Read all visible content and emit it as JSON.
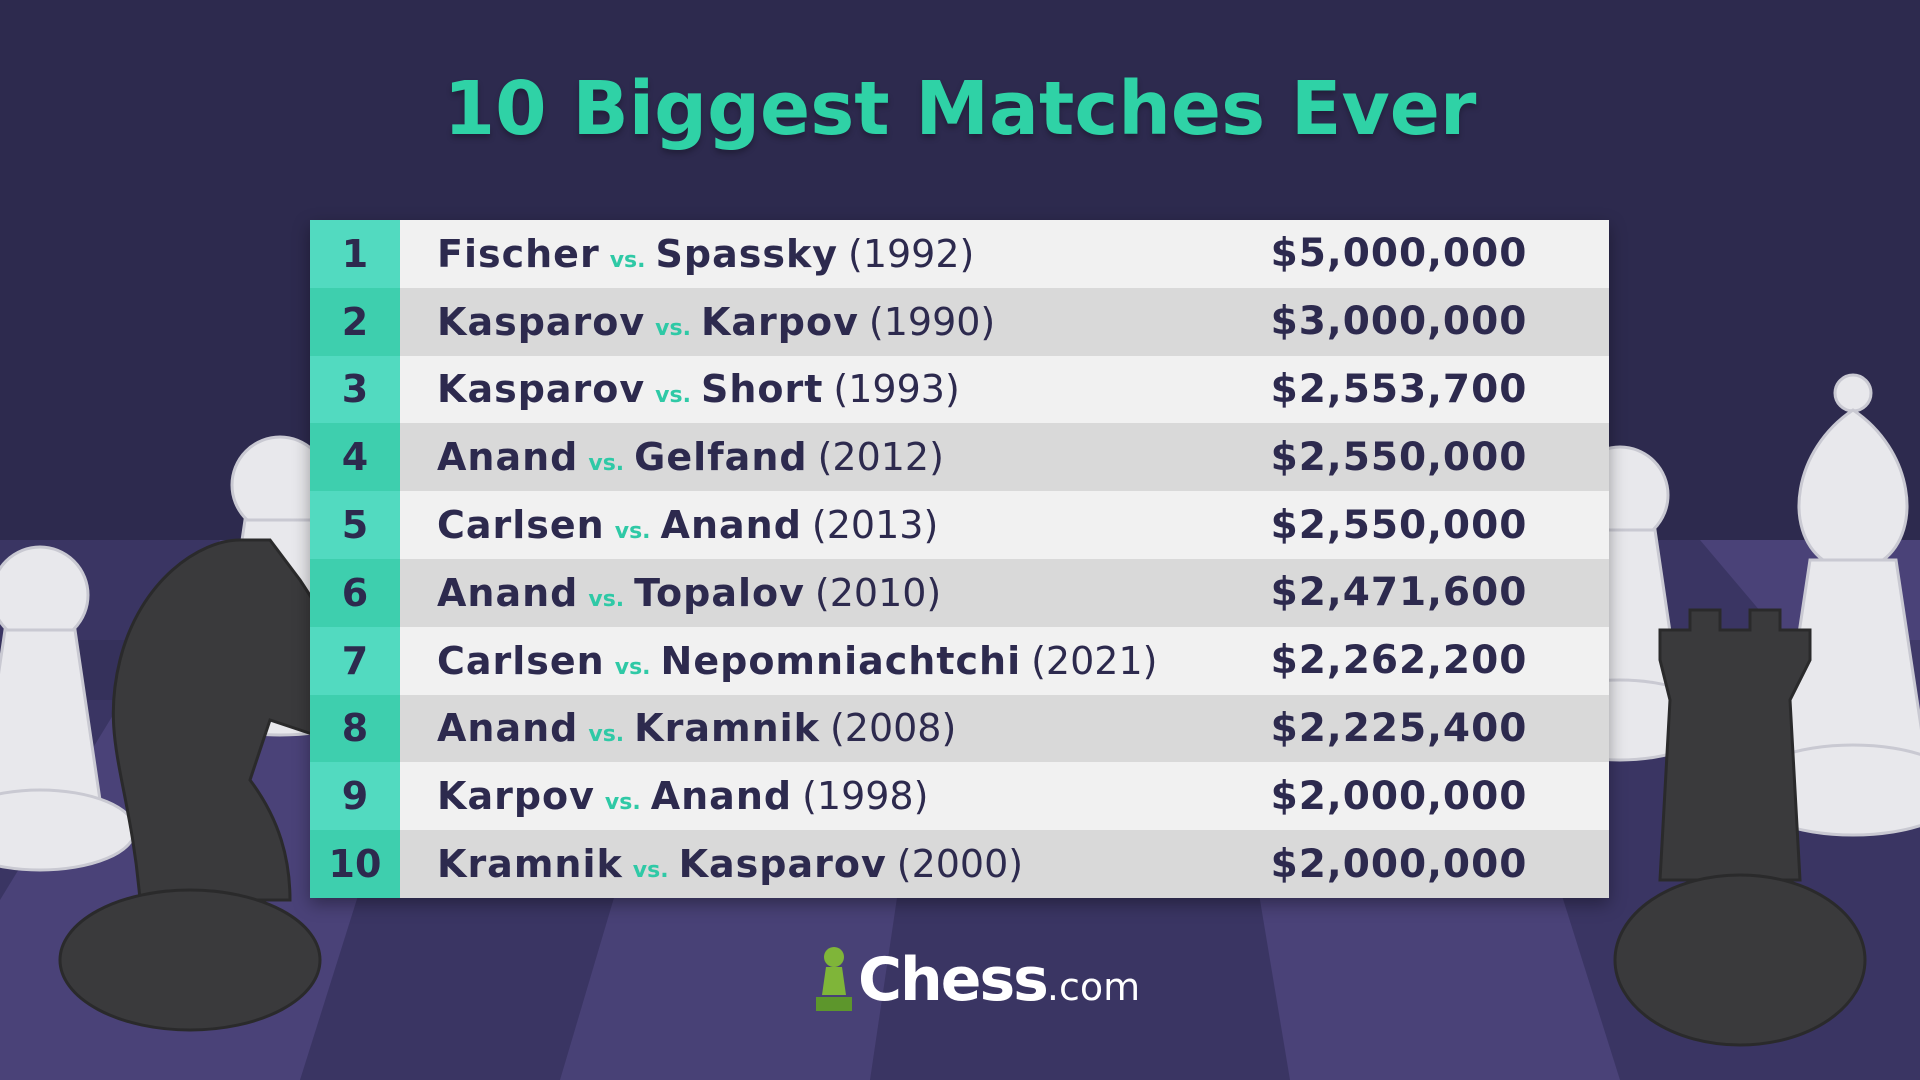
{
  "title": "10 Biggest Matches Ever",
  "table": {
    "rows": [
      {
        "rank": "1",
        "player1": "Fischer",
        "vs": "vs.",
        "player2": "Spassky",
        "year": "(1992)",
        "prize": "$5,000,000"
      },
      {
        "rank": "2",
        "player1": "Kasparov",
        "vs": "vs.",
        "player2": "Karpov",
        "year": "(1990)",
        "prize": "$3,000,000"
      },
      {
        "rank": "3",
        "player1": "Kasparov",
        "vs": "vs.",
        "player2": "Short",
        "year": "(1993)",
        "prize": "$2,553,700"
      },
      {
        "rank": "4",
        "player1": "Anand",
        "vs": "vs.",
        "player2": "Gelfand",
        "year": "(2012)",
        "prize": "$2,550,000"
      },
      {
        "rank": "5",
        "player1": "Carlsen",
        "vs": "vs.",
        "player2": "Anand",
        "year": "(2013)",
        "prize": "$2,550,000"
      },
      {
        "rank": "6",
        "player1": "Anand",
        "vs": "vs.",
        "player2": "Topalov",
        "year": "(2010)",
        "prize": "$2,471,600"
      },
      {
        "rank": "7",
        "player1": "Carlsen",
        "vs": "vs.",
        "player2": "Nepomniachtchi",
        "year": "(2021)",
        "prize": "$2,262,200"
      },
      {
        "rank": "8",
        "player1": "Anand",
        "vs": "vs.",
        "player2": "Kramnik",
        "year": "(2008)",
        "prize": "$2,225,400"
      },
      {
        "rank": "9",
        "player1": "Karpov",
        "vs": "vs.",
        "player2": "Anand",
        "year": "(1998)",
        "prize": "$2,000,000"
      },
      {
        "rank": "10",
        "player1": "Kramnik",
        "vs": "vs.",
        "player2": "Kasparov",
        "year": "(2000)",
        "prize": "$2,000,000"
      }
    ]
  },
  "logo": {
    "name": "Chess",
    "suffix": ".com"
  }
}
